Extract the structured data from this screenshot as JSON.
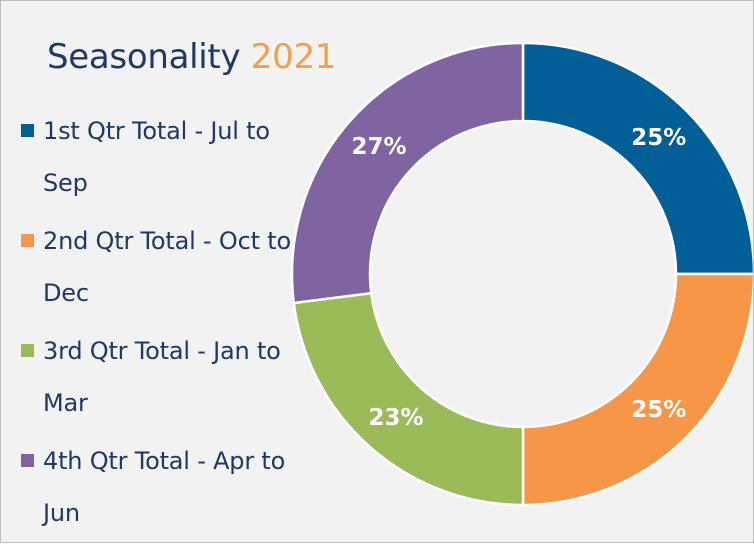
{
  "title": {
    "main": "Seasonality",
    "year": "2021"
  },
  "colors": {
    "title_main": "#1f3864",
    "title_year": "#f4a04a",
    "background": "#f2f2f2"
  },
  "chart_data": {
    "type": "pie",
    "style": "donut",
    "title": "Seasonality 2021",
    "legend_position": "left",
    "categories": [
      "1st Qtr Total - Jul to Sep",
      "2nd Qtr Total - Oct to Dec",
      "3rd Qtr Total - Jan to Mar",
      "4th Qtr Total - Apr to Jun"
    ],
    "values": [
      25,
      25,
      23,
      27
    ],
    "value_labels": [
      "25%",
      "25%",
      "23%",
      "27%"
    ],
    "colors": [
      "#005f96",
      "#f79646",
      "#9bbb59",
      "#8064a2"
    ]
  }
}
